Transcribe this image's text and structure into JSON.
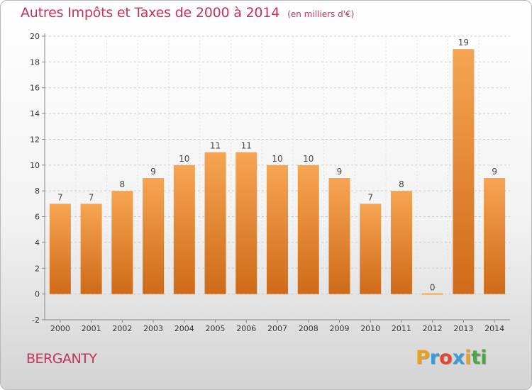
{
  "header": {
    "title": "Autres Impôts et Taxes de 2000 à 2014",
    "subtitle": "(en milliers d'€)"
  },
  "footer": {
    "commune": "BERGANTY",
    "logo_letters": [
      "P",
      "r",
      "o",
      "x",
      "i",
      "t",
      "i"
    ],
    "logo_colors": [
      "#e8a21b",
      "#3a9bd8",
      "#e5462f",
      "#3a9bd8",
      "#e8a21b",
      "#4aa843",
      "#4aa843"
    ]
  },
  "colors": {
    "title": "#c8325a",
    "bar_light": "#f6a552",
    "bar_dark": "#cf6a18",
    "axis_text": "#333333",
    "grid": "#cccccc"
  },
  "chart_data": {
    "type": "bar",
    "categories": [
      "2000",
      "2001",
      "2002",
      "2003",
      "2004",
      "2005",
      "2006",
      "2007",
      "2008",
      "2009",
      "2010",
      "2011",
      "2012",
      "2013",
      "2014"
    ],
    "values": [
      7,
      7,
      8,
      9,
      10,
      11,
      11,
      10,
      10,
      9,
      7,
      8,
      0,
      19,
      9
    ],
    "data_labels": [
      "7",
      "7",
      "8",
      "9",
      "10",
      "11",
      "11",
      "10",
      "10",
      "9",
      "7",
      "8",
      "0",
      "19",
      "9"
    ],
    "title": "Autres Impôts et Taxes de 2000 à 2014",
    "ylim": [
      -2,
      20
    ],
    "yticks": [
      -2,
      0,
      2,
      4,
      6,
      8,
      10,
      12,
      14,
      16,
      18,
      20
    ],
    "grid": "horizontal dashed"
  }
}
